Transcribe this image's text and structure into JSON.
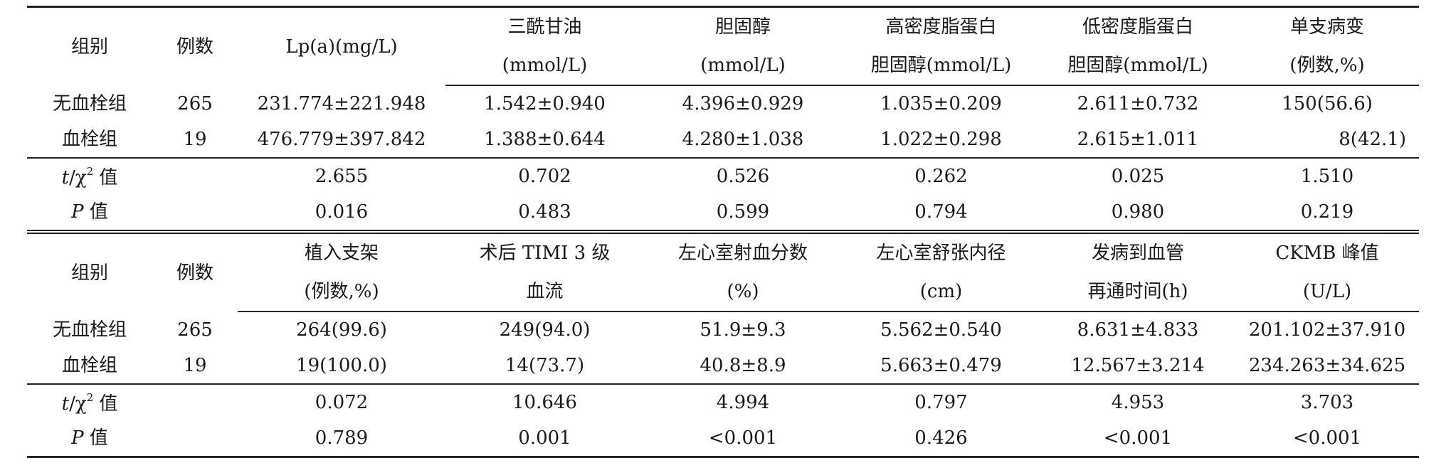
{
  "sections": [
    {
      "header_top": [
        "",
        "",
        "Lp(a)(mg/L)",
        "三酰甘油",
        "胆固醇",
        "高密度脂蛋白",
        "低密度脂蛋白",
        "单支病变"
      ],
      "header_bottom": [
        "",
        "",
        "",
        "(mmol/L)",
        "(mmol/L)",
        "胆固醇(mmol/L)",
        "胆固醇(mmol/L)",
        "(例数,%)"
      ],
      "group_label": "组别",
      "count_label": "例数",
      "rows": [
        {
          "group": "无血栓组",
          "n": "265",
          "values": [
            "231.774±221.948",
            "1.542±0.940",
            "4.396±0.929",
            "1.035±0.209",
            "2.611±0.732",
            "150(56.6)"
          ]
        },
        {
          "group": "血栓组",
          "n": "19",
          "values": [
            "476.779±397.842",
            "1.388±0.644",
            "4.280±1.038",
            "1.022±0.298",
            "2.615±1.011",
            "8(42.1)"
          ]
        }
      ],
      "t_values": [
        "2.655",
        "0.702",
        "0.526",
        "0.262",
        "0.025",
        "1.510"
      ],
      "p_values": [
        "0.016",
        "0.483",
        "0.599",
        "0.794",
        "0.980",
        "0.219"
      ]
    },
    {
      "header_top": [
        "",
        "",
        "植入支架",
        "术后 TIMI 3 级",
        "左心室射血分数",
        "左心室舒张内径",
        "发病到血管",
        "CKMB 峰值"
      ],
      "header_bottom": [
        "",
        "",
        "(例数,%)",
        "血流",
        "(%)",
        "(cm)",
        "再通时间(h)",
        "(U/L)"
      ],
      "group_label": "组别",
      "count_label": "例数",
      "rows": [
        {
          "group": "无血栓组",
          "n": "265",
          "values": [
            "264(99.6)",
            "249(94.0)",
            "51.9±9.3",
            "5.562±0.540",
            "8.631±4.833",
            "201.102±37.910"
          ]
        },
        {
          "group": "血栓组",
          "n": "19",
          "values": [
            "19(100.0)",
            "14(73.7)",
            "40.8±8.9",
            "5.663±0.479",
            "12.567±3.214",
            "234.263±34.625"
          ]
        }
      ],
      "t_values": [
        "0.072",
        "10.646",
        "4.994",
        "0.797",
        "4.953",
        "3.703"
      ],
      "p_values": [
        "0.789",
        "0.001",
        "<0.001",
        "0.426",
        "<0.001",
        "<0.001"
      ]
    }
  ],
  "stat_labels": {
    "t_var": "t",
    "t_rest": "/χ",
    "t_sup": "2",
    "t_suffix": " 值",
    "p_var": "P",
    "p_suffix": " 值"
  }
}
